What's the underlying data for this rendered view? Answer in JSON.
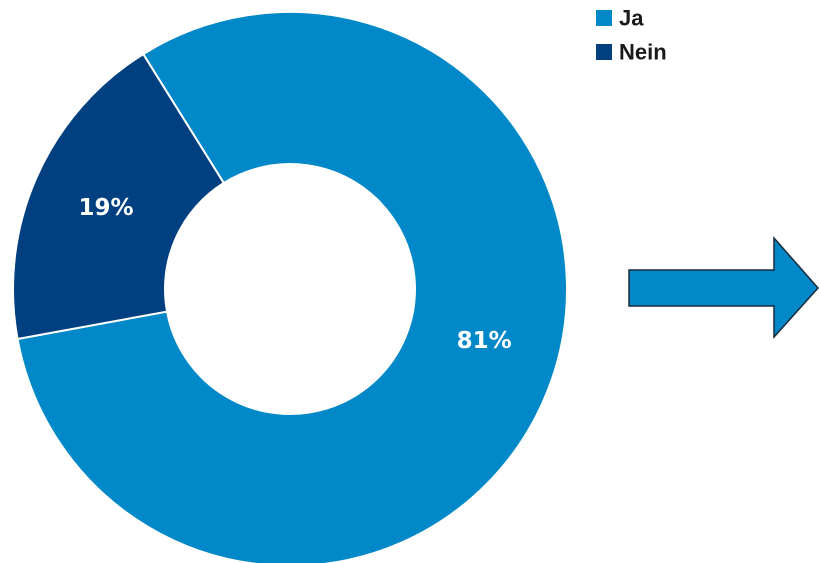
{
  "chart_data": {
    "type": "pie",
    "variant": "donut",
    "categories": [
      "Ja",
      "Nein"
    ],
    "values": [
      81,
      19
    ],
    "value_labels": [
      "81%",
      "19%"
    ],
    "colors": [
      "#0088c8",
      "#003f80"
    ],
    "legend": {
      "placement": "top-right",
      "entries": [
        "Ja",
        "Nein"
      ]
    },
    "title": "",
    "xlabel": "",
    "ylabel": ""
  },
  "annotations": {
    "arrow": {
      "direction": "right",
      "color": "#0088c8",
      "outline_color": "#1a2a3a"
    }
  }
}
